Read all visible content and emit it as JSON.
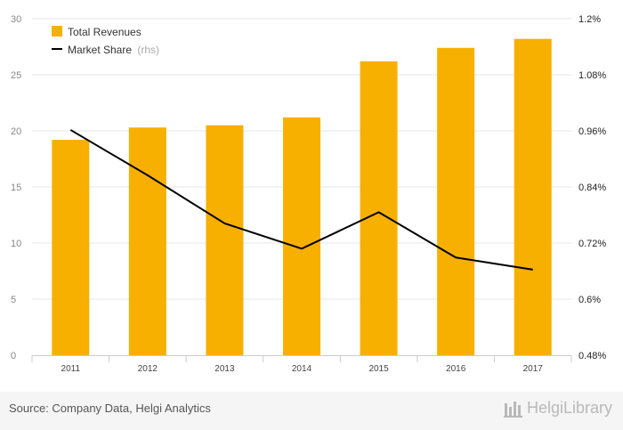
{
  "chart_data": {
    "type": "bar+line",
    "categories": [
      "2011",
      "2012",
      "2013",
      "2014",
      "2015",
      "2016",
      "2017"
    ],
    "series": [
      {
        "name": "Total Revenues",
        "type": "bar",
        "axis": "left",
        "color": "#f7b000",
        "values": [
          19.2,
          20.3,
          20.5,
          21.2,
          26.2,
          27.4,
          28.2
        ]
      },
      {
        "name": "Market Share",
        "legend_suffix": "(rhs)",
        "type": "line",
        "axis": "right",
        "color": "#000000",
        "values": [
          0.962,
          0.865,
          0.762,
          0.708,
          0.786,
          0.689,
          0.663
        ]
      }
    ],
    "y_left": {
      "min": 0,
      "max": 30,
      "ticks": [
        "0",
        "5",
        "10",
        "15",
        "20",
        "25",
        "30"
      ],
      "tick_values": [
        0,
        5,
        10,
        15,
        20,
        25,
        30
      ]
    },
    "y_right": {
      "min": 0.48,
      "max": 1.2,
      "ticks": [
        "0.48%",
        "0.6%",
        "0.72%",
        "0.84%",
        "0.96%",
        "1.08%",
        "1.2%"
      ],
      "tick_values": [
        0.48,
        0.6,
        0.72,
        0.84,
        0.96,
        1.08,
        1.2
      ]
    },
    "grid": true,
    "legend_position": "top-left"
  },
  "footer": {
    "source": "Source: Company Data, Helgi Analytics",
    "logo": "HelgiLibrary"
  }
}
